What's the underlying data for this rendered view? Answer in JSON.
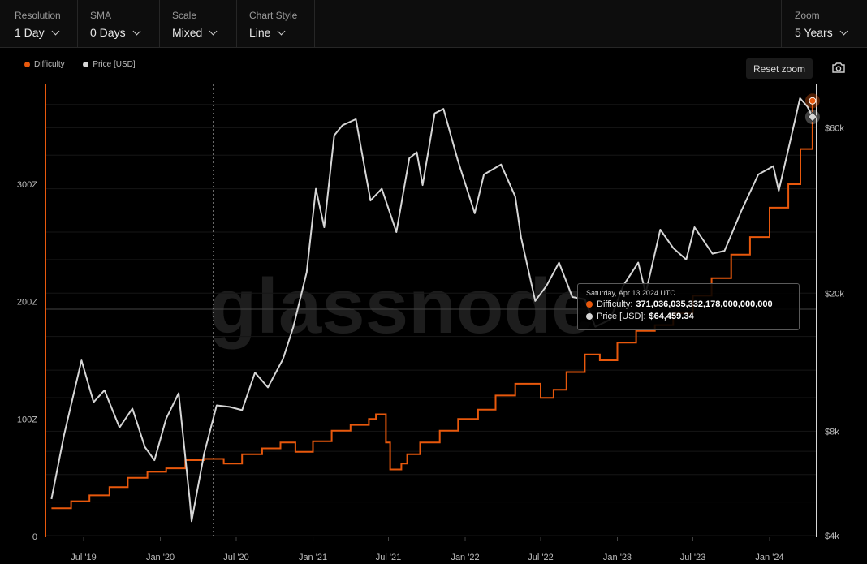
{
  "toolbar": {
    "resolution": {
      "label": "Resolution",
      "value": "1 Day"
    },
    "sma": {
      "label": "SMA",
      "value": "0 Days"
    },
    "scale": {
      "label": "Scale",
      "value": "Mixed"
    },
    "chart_style": {
      "label": "Chart Style",
      "value": "Line"
    },
    "zoom": {
      "label": "Zoom",
      "value": "5 Years"
    }
  },
  "reset_zoom_label": "Reset zoom",
  "watermark": "glassnode",
  "colors": {
    "difficulty": "#e8580c",
    "price": "#d6d6d6",
    "background": "#000000"
  },
  "tooltip": {
    "date": "Saturday, Apr 13 2024 UTC",
    "difficulty_label": "Difficulty:",
    "difficulty_value": "371,036,035,332,178,000,000,000",
    "price_label": "Price [USD]:",
    "price_value": "$64,459.34"
  },
  "chart_data": {
    "type": "line",
    "legend": "top-left",
    "x_ticks": [
      "Jul '19",
      "Jan '20",
      "Jul '20",
      "Jan '21",
      "Jul '21",
      "Jan '22",
      "Jul '22",
      "Jan '23",
      "Jul '23",
      "Jan '24"
    ],
    "left_axis": {
      "ticks": [
        "0",
        "100Z",
        "200Z",
        "300Z"
      ],
      "range": [
        0,
        385
      ],
      "unit": "Z"
    },
    "right_axis": {
      "ticks": [
        "$4k",
        "$8k",
        "$20k",
        "$60k"
      ],
      "range": [
        4000,
        80000
      ],
      "scale": "log"
    },
    "series": [
      {
        "name": "Difficulty",
        "axis": "left",
        "points": [
          [
            "2019-04-15",
            24
          ],
          [
            "2019-06-01",
            30
          ],
          [
            "2019-07-15",
            35
          ],
          [
            "2019-09-01",
            42
          ],
          [
            "2019-10-15",
            50
          ],
          [
            "2019-12-01",
            55
          ],
          [
            "2020-01-15",
            58
          ],
          [
            "2020-03-01",
            65
          ],
          [
            "2020-04-15",
            66
          ],
          [
            "2020-05-20",
            66
          ],
          [
            "2020-06-01",
            62
          ],
          [
            "2020-07-15",
            70
          ],
          [
            "2020-09-01",
            75
          ],
          [
            "2020-10-15",
            80
          ],
          [
            "2020-11-20",
            72
          ],
          [
            "2021-01-01",
            81
          ],
          [
            "2021-02-15",
            90
          ],
          [
            "2021-04-01",
            95
          ],
          [
            "2021-05-15",
            100
          ],
          [
            "2021-06-01",
            104
          ],
          [
            "2021-06-25",
            80
          ],
          [
            "2021-07-05",
            57
          ],
          [
            "2021-08-01",
            62
          ],
          [
            "2021-08-15",
            70
          ],
          [
            "2021-09-15",
            80
          ],
          [
            "2021-11-01",
            90
          ],
          [
            "2021-12-15",
            100
          ],
          [
            "2022-02-01",
            108
          ],
          [
            "2022-03-15",
            120
          ],
          [
            "2022-05-01",
            130
          ],
          [
            "2022-06-15",
            130
          ],
          [
            "2022-07-01",
            118
          ],
          [
            "2022-08-01",
            125
          ],
          [
            "2022-09-01",
            140
          ],
          [
            "2022-10-15",
            155
          ],
          [
            "2022-11-20",
            150
          ],
          [
            "2023-01-01",
            165
          ],
          [
            "2023-02-15",
            175
          ],
          [
            "2023-04-01",
            180
          ],
          [
            "2023-05-15",
            190
          ],
          [
            "2023-07-01",
            205
          ],
          [
            "2023-08-15",
            220
          ],
          [
            "2023-10-01",
            240
          ],
          [
            "2023-11-15",
            255
          ],
          [
            "2024-01-01",
            280
          ],
          [
            "2024-02-15",
            300
          ],
          [
            "2024-03-15",
            330
          ],
          [
            "2024-04-13",
            371
          ]
        ]
      },
      {
        "name": "Price [USD]",
        "axis": "right",
        "points": [
          [
            "2019-04-15",
            5100
          ],
          [
            "2019-05-15",
            7800
          ],
          [
            "2019-06-26",
            12800
          ],
          [
            "2019-07-25",
            9700
          ],
          [
            "2019-08-20",
            10500
          ],
          [
            "2019-09-25",
            8200
          ],
          [
            "2019-10-26",
            9300
          ],
          [
            "2019-11-25",
            7200
          ],
          [
            "2019-12-18",
            6600
          ],
          [
            "2020-01-15",
            8700
          ],
          [
            "2020-02-14",
            10300
          ],
          [
            "2020-03-12",
            5000
          ],
          [
            "2020-03-16",
            4400
          ],
          [
            "2020-04-15",
            6900
          ],
          [
            "2020-05-15",
            9500
          ],
          [
            "2020-06-15",
            9400
          ],
          [
            "2020-07-15",
            9200
          ],
          [
            "2020-08-15",
            11800
          ],
          [
            "2020-09-15",
            10700
          ],
          [
            "2020-10-21",
            12900
          ],
          [
            "2020-11-15",
            16000
          ],
          [
            "2020-12-17",
            23000
          ],
          [
            "2021-01-08",
            40000
          ],
          [
            "2021-01-28",
            31000
          ],
          [
            "2021-02-21",
            57000
          ],
          [
            "2021-03-13",
            61000
          ],
          [
            "2021-04-14",
            63500
          ],
          [
            "2021-05-19",
            37000
          ],
          [
            "2021-06-15",
            40000
          ],
          [
            "2021-07-20",
            30000
          ],
          [
            "2021-08-20",
            49000
          ],
          [
            "2021-09-07",
            51000
          ],
          [
            "2021-09-21",
            41000
          ],
          [
            "2021-10-20",
            66000
          ],
          [
            "2021-11-10",
            68000
          ],
          [
            "2021-12-15",
            48000
          ],
          [
            "2022-01-24",
            34000
          ],
          [
            "2022-02-15",
            44000
          ],
          [
            "2022-03-28",
            47000
          ],
          [
            "2022-05-01",
            38000
          ],
          [
            "2022-05-15",
            29000
          ],
          [
            "2022-06-18",
            19000
          ],
          [
            "2022-07-15",
            21000
          ],
          [
            "2022-08-14",
            24500
          ],
          [
            "2022-09-15",
            19500
          ],
          [
            "2022-10-15",
            19200
          ],
          [
            "2022-11-09",
            16000
          ],
          [
            "2022-12-15",
            16800
          ],
          [
            "2023-01-15",
            21000
          ],
          [
            "2023-02-20",
            24500
          ],
          [
            "2023-03-10",
            20000
          ],
          [
            "2023-04-14",
            30500
          ],
          [
            "2023-05-15",
            27000
          ],
          [
            "2023-06-15",
            25000
          ],
          [
            "2023-07-05",
            31000
          ],
          [
            "2023-08-17",
            26000
          ],
          [
            "2023-09-15",
            26500
          ],
          [
            "2023-10-25",
            34500
          ],
          [
            "2023-12-05",
            44000
          ],
          [
            "2024-01-10",
            46500
          ],
          [
            "2024-01-23",
            39500
          ],
          [
            "2024-02-15",
            52000
          ],
          [
            "2024-03-14",
            73000
          ],
          [
            "2024-04-01",
            69000
          ],
          [
            "2024-04-13",
            64459
          ]
        ]
      }
    ],
    "crosshair_date": "2020-05-11",
    "tooltip_date": "2024-04-13"
  }
}
